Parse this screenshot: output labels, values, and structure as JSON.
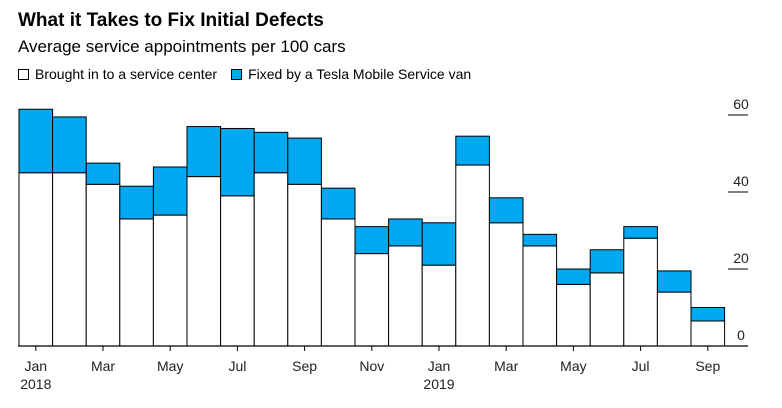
{
  "chart_data": {
    "type": "bar",
    "stacked": true,
    "title": "What it Takes to Fix Initial Defects",
    "subtitle": "Average service appointments per 100 cars",
    "categories": [
      "Jan 2018",
      "Feb 2018",
      "Mar 2018",
      "Apr 2018",
      "May 2018",
      "Jun 2018",
      "Jul 2018",
      "Aug 2018",
      "Sep 2018",
      "Oct 2018",
      "Nov 2018",
      "Dec 2018",
      "Jan 2019",
      "Feb 2019",
      "Mar 2019",
      "Apr 2019",
      "May 2019",
      "Jun 2019",
      "Jul 2019",
      "Aug 2019",
      "Sep 2019"
    ],
    "series": [
      {
        "name": "Brought in to a service center",
        "color": "#ffffff",
        "values": [
          45,
          45,
          42,
          33,
          34,
          44,
          39,
          45,
          42,
          33,
          24,
          26,
          21,
          47,
          32,
          26,
          16,
          19,
          28,
          14,
          6.5
        ]
      },
      {
        "name": "Fixed by a Tesla Mobile Service van",
        "color": "#00a8f0",
        "values": [
          16.5,
          14.5,
          5.5,
          8.5,
          12.5,
          13,
          17.5,
          10.5,
          12,
          8,
          7,
          7,
          11,
          7.5,
          6.5,
          3,
          4,
          6,
          3,
          5.5,
          3.5
        ]
      }
    ],
    "x_tick_labels": [
      {
        "index": 0,
        "label": "Jan",
        "year": "2018"
      },
      {
        "index": 2,
        "label": "Mar"
      },
      {
        "index": 4,
        "label": "May"
      },
      {
        "index": 6,
        "label": "Jul"
      },
      {
        "index": 8,
        "label": "Sep"
      },
      {
        "index": 10,
        "label": "Nov"
      },
      {
        "index": 12,
        "label": "Jan",
        "year": "2019"
      },
      {
        "index": 14,
        "label": "Mar"
      },
      {
        "index": 16,
        "label": "May"
      },
      {
        "index": 18,
        "label": "Jul"
      },
      {
        "index": 20,
        "label": "Sep"
      }
    ],
    "y_ticks": [
      0,
      20,
      40,
      60
    ],
    "ylim": [
      0,
      62
    ],
    "y_axis_position": "right",
    "legend_position": "top-left",
    "grid": false
  }
}
